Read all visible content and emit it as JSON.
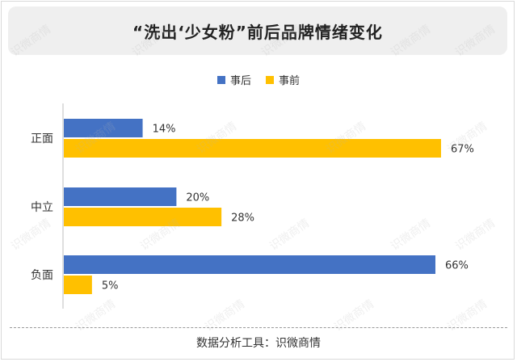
{
  "title": "“洗出‘少女粉”前后品牌情绪变化",
  "footer": "数据分析工具：识微商情",
  "watermark": "识微商情",
  "colors": {
    "after": "#4472c4",
    "before": "#ffc000"
  },
  "chart_data": {
    "type": "bar",
    "orientation": "horizontal",
    "categories": [
      "正面",
      "中立",
      "负面"
    ],
    "series": [
      {
        "name": "事后",
        "values": [
          14,
          20,
          66
        ],
        "labels": [
          "14%",
          "20%",
          "66%"
        ]
      },
      {
        "name": "事前",
        "values": [
          67,
          28,
          5
        ],
        "labels": [
          "67%",
          "28%",
          "5%"
        ]
      }
    ],
    "xlim": [
      0,
      70
    ],
    "unit": "%",
    "legend": "top-center",
    "grid": false
  }
}
